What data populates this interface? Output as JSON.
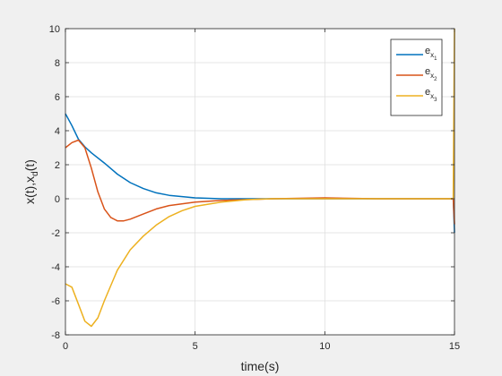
{
  "chart_data": {
    "type": "line",
    "title": "",
    "xlabel": "time(s)",
    "ylabel": "x(t),x_d(t)",
    "xlim": [
      0,
      15
    ],
    "ylim": [
      -8,
      10
    ],
    "xticks": [
      0,
      5,
      10,
      15
    ],
    "yticks": [
      -8,
      -6,
      -4,
      -2,
      0,
      2,
      4,
      6,
      8,
      10
    ],
    "grid": true,
    "legend_position": "top-right",
    "series": [
      {
        "name": "e_x1",
        "label_main": "e",
        "label_sub1": "x",
        "label_sub2": "1",
        "color": "#0072BD",
        "x": [
          0,
          0.25,
          0.5,
          0.75,
          1,
          1.5,
          2,
          2.5,
          3,
          3.5,
          4,
          5,
          6,
          8,
          10,
          12,
          14,
          14.95,
          15
        ],
        "y": [
          5.0,
          4.3,
          3.5,
          3.05,
          2.7,
          2.1,
          1.45,
          0.95,
          0.6,
          0.35,
          0.2,
          0.05,
          0.0,
          0.0,
          0.0,
          0.0,
          0.0,
          0.0,
          -2.0
        ]
      },
      {
        "name": "e_x2",
        "label_main": "e",
        "label_sub1": "x",
        "label_sub2": "2",
        "color": "#D95319",
        "x": [
          0,
          0.25,
          0.5,
          0.75,
          1,
          1.25,
          1.5,
          1.75,
          2,
          2.25,
          2.5,
          3,
          3.5,
          4,
          5,
          6,
          8,
          10,
          12,
          14,
          14.95,
          15
        ],
        "y": [
          3.0,
          3.3,
          3.45,
          3.0,
          1.8,
          0.4,
          -0.6,
          -1.1,
          -1.3,
          -1.3,
          -1.2,
          -0.9,
          -0.6,
          -0.4,
          -0.2,
          -0.1,
          0.0,
          0.05,
          0.0,
          0.0,
          0.0,
          -1.5
        ]
      },
      {
        "name": "e_x3",
        "label_main": "e",
        "label_sub1": "x",
        "label_sub2": "3",
        "color": "#EDB120",
        "x": [
          0,
          0.25,
          0.5,
          0.75,
          1,
          1.25,
          1.5,
          2,
          2.5,
          3,
          3.5,
          4,
          4.5,
          5,
          6,
          7,
          8,
          10,
          12,
          14,
          14.95,
          15
        ],
        "y": [
          -5.0,
          -5.2,
          -6.2,
          -7.2,
          -7.5,
          -7.0,
          -6.0,
          -4.2,
          -3.0,
          -2.2,
          -1.55,
          -1.05,
          -0.7,
          -0.45,
          -0.2,
          -0.05,
          0.0,
          0.0,
          0.0,
          0.0,
          0.0,
          10.0
        ]
      }
    ]
  }
}
